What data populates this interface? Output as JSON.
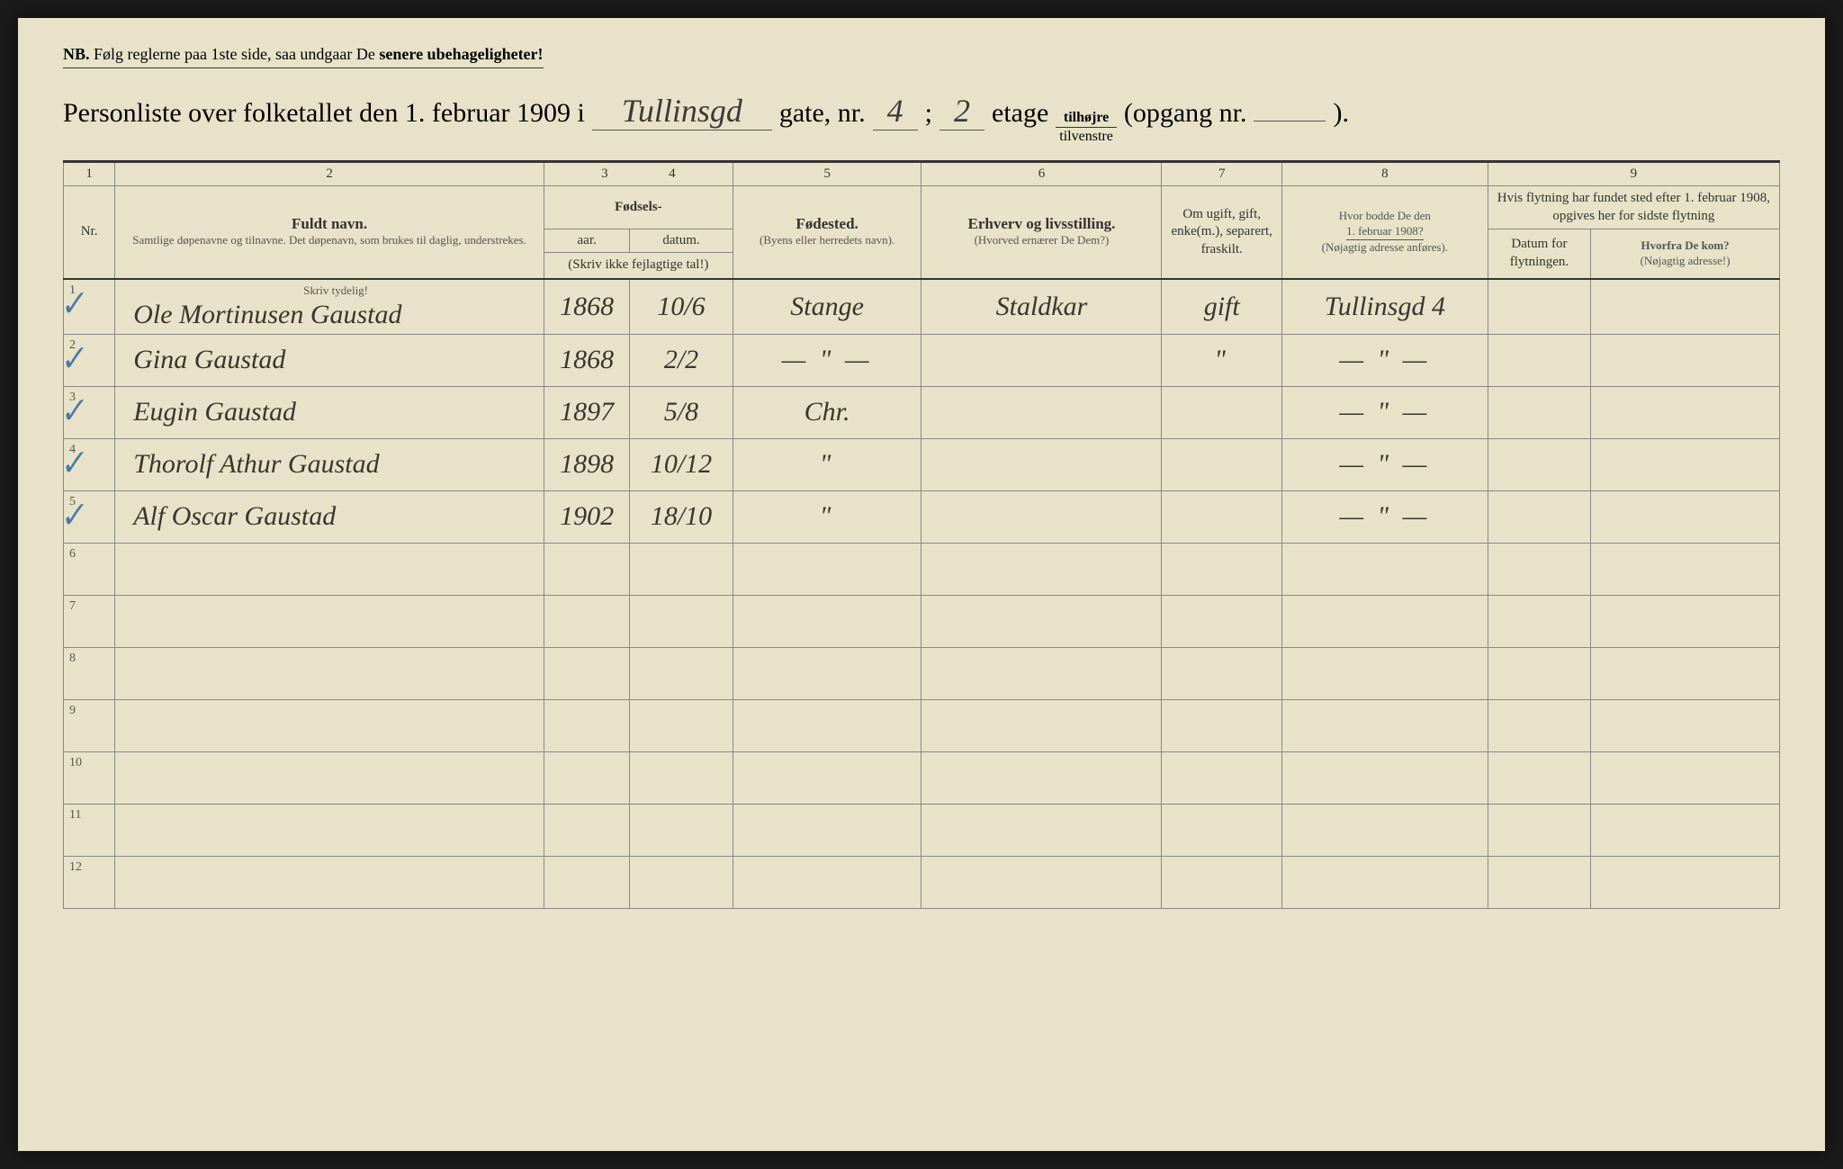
{
  "nb": {
    "prefix": "NB.",
    "text1": "Følg reglerne paa 1ste side, saa undgaar De ",
    "text2": "senere ubehageligheter!"
  },
  "title": {
    "t1": "Personliste over folketallet den 1. februar 1909 i",
    "street": "Tullinsgd",
    "t2": "gate, nr.",
    "nr": "4",
    "sep": ";",
    "etage_nr": "2",
    "t3": "etage",
    "frac_top": "tilhøjre",
    "frac_bot": "tilvenstre",
    "t4": "(opgang nr.",
    "opgang": "",
    "t5": ")."
  },
  "colnums": [
    "1",
    "2",
    "3",
    "4",
    "5",
    "6",
    "7",
    "8",
    "9"
  ],
  "headers": {
    "nr": "Nr.",
    "navn_main": "Fuldt navn.",
    "navn_sub": "Samtlige døpenavne og tilnavne. Det døpenavn, som brukes til daglig, understrekes.",
    "fodsels": "Fødsels-",
    "aar": "aar.",
    "datum": "datum.",
    "fodsels_sub": "(Skriv ikke fejlagtige tal!)",
    "fodested": "Fødested.",
    "fodested_sub": "(Byens eller herredets navn).",
    "erhverv": "Erhverv og livsstilling.",
    "erhverv_sub": "(Hvorved ernærer De Dem?)",
    "ugift": "Om ugift, gift, enke(m.), separert, fraskilt.",
    "bodde": "Hvor bodde De den",
    "bodde_date": "1. februar 1908?",
    "bodde_sub": "(Nøjagtig adresse anføres).",
    "flyt_top": "Hvis flytning har fundet sted efter 1. februar 1908, opgives her for sidste flytning",
    "flyt_datum": "Datum for flytningen.",
    "flyt_hvor": "Hvorfra De kom?",
    "flyt_hvor_sub": "(Nøjagtig adresse!)",
    "skriv_tydelig": "Skriv tydelig!"
  },
  "rows": [
    {
      "nr": "1",
      "check": true,
      "name": "Ole Mortinusen Gaustad",
      "aar": "1868",
      "datum": "10/6",
      "sted": "Stange",
      "erhverv": "Staldkar",
      "status": "gift",
      "bodde": "Tullinsgd 4",
      "fd": "",
      "fh": ""
    },
    {
      "nr": "2",
      "check": true,
      "name": "Gina Gaustad",
      "aar": "1868",
      "datum": "2/2",
      "sted": "— \" —",
      "erhverv": "",
      "status": "\"",
      "bodde": "— \" —",
      "fd": "",
      "fh": ""
    },
    {
      "nr": "3",
      "check": true,
      "name": "Eugin Gaustad",
      "aar": "1897",
      "datum": "5/8",
      "sted": "Chr.",
      "erhverv": "",
      "status": "",
      "bodde": "— \" —",
      "fd": "",
      "fh": ""
    },
    {
      "nr": "4",
      "check": true,
      "name": "Thorolf Athur Gaustad",
      "aar": "1898",
      "datum": "10/12",
      "sted": "\"",
      "erhverv": "",
      "status": "",
      "bodde": "— \" —",
      "fd": "",
      "fh": ""
    },
    {
      "nr": "5",
      "check": true,
      "name": "Alf Oscar Gaustad",
      "aar": "1902",
      "datum": "18/10",
      "sted": "\"",
      "erhverv": "",
      "status": "",
      "bodde": "— \" —",
      "fd": "",
      "fh": ""
    },
    {
      "nr": "6",
      "check": false,
      "name": "",
      "aar": "",
      "datum": "",
      "sted": "",
      "erhverv": "",
      "status": "",
      "bodde": "",
      "fd": "",
      "fh": ""
    },
    {
      "nr": "7",
      "check": false,
      "name": "",
      "aar": "",
      "datum": "",
      "sted": "",
      "erhverv": "",
      "status": "",
      "bodde": "",
      "fd": "",
      "fh": ""
    },
    {
      "nr": "8",
      "check": false,
      "name": "",
      "aar": "",
      "datum": "",
      "sted": "",
      "erhverv": "",
      "status": "",
      "bodde": "",
      "fd": "",
      "fh": ""
    },
    {
      "nr": "9",
      "check": false,
      "name": "",
      "aar": "",
      "datum": "",
      "sted": "",
      "erhverv": "",
      "status": "",
      "bodde": "",
      "fd": "",
      "fh": ""
    },
    {
      "nr": "10",
      "check": false,
      "name": "",
      "aar": "",
      "datum": "",
      "sted": "",
      "erhverv": "",
      "status": "",
      "bodde": "",
      "fd": "",
      "fh": ""
    },
    {
      "nr": "11",
      "check": false,
      "name": "",
      "aar": "",
      "datum": "",
      "sted": "",
      "erhverv": "",
      "status": "",
      "bodde": "",
      "fd": "",
      "fh": ""
    },
    {
      "nr": "12",
      "check": false,
      "name": "",
      "aar": "",
      "datum": "",
      "sted": "",
      "erhverv": "",
      "status": "",
      "bodde": "",
      "fd": "",
      "fh": ""
    }
  ],
  "col_widths": {
    "nr": "3%",
    "name": "25%",
    "aar": "5%",
    "datum": "6%",
    "sted": "11%",
    "erhverv": "14%",
    "status": "7%",
    "bodde": "12%",
    "fd": "6%",
    "fh": "11%"
  }
}
